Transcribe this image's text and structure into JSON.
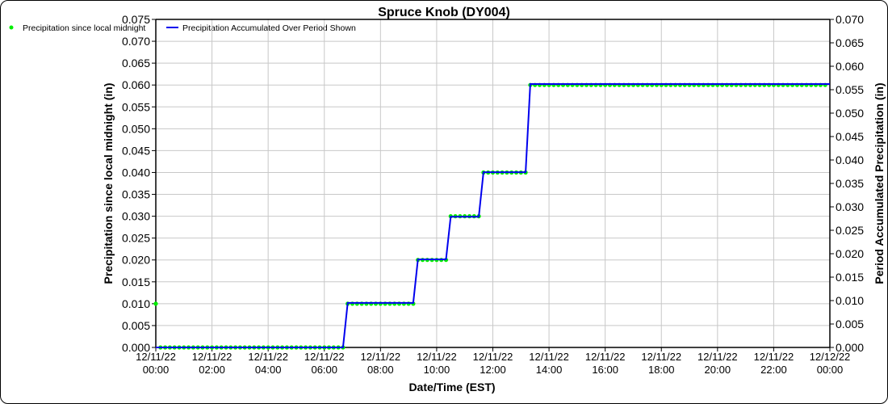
{
  "chart_data": {
    "type": "line",
    "title": "Spruce Knob (DY004)",
    "xlabel": "Date/Time (EST)",
    "ylabel_left": "Precipitation since local midnight (in)",
    "ylabel_right": "Period Accumulated Precipitation (in)",
    "ylim_left": [
      0,
      0.075
    ],
    "ylim_right": [
      0,
      0.07
    ],
    "ytick_step": 0.005,
    "xlim_hours": [
      0,
      24
    ],
    "xtick_step_hours": 2,
    "xtick_labels": [
      [
        "12/11/22",
        "00:00"
      ],
      [
        "12/11/22",
        "02:00"
      ],
      [
        "12/11/22",
        "04:00"
      ],
      [
        "12/11/22",
        "06:00"
      ],
      [
        "12/11/22",
        "08:00"
      ],
      [
        "12/11/22",
        "10:00"
      ],
      [
        "12/11/22",
        "12:00"
      ],
      [
        "12/11/22",
        "14:00"
      ],
      [
        "12/11/22",
        "16:00"
      ],
      [
        "12/11/22",
        "18:00"
      ],
      [
        "12/11/22",
        "20:00"
      ],
      [
        "12/11/22",
        "22:00"
      ],
      [
        "12/12/22",
        "00:00"
      ]
    ],
    "grid": true,
    "legend_position": "top-left",
    "interval_minutes": 10,
    "series": [
      {
        "name": "Precipitation since local midnight",
        "axis": "left",
        "style": "points",
        "color": "#00ee00",
        "runs": [
          {
            "start": "00:00",
            "end": "00:00",
            "value": 0.01
          },
          {
            "start": "00:10",
            "end": "06:40",
            "value": 0.0
          },
          {
            "start": "06:50",
            "end": "09:10",
            "value": 0.01
          },
          {
            "start": "09:20",
            "end": "10:20",
            "value": 0.02
          },
          {
            "start": "10:30",
            "end": "11:30",
            "value": 0.03
          },
          {
            "start": "11:40",
            "end": "13:10",
            "value": 0.04
          },
          {
            "start": "13:20",
            "end": "23:50",
            "value": 0.06
          }
        ]
      },
      {
        "name": "Precipitation Accumulated Over Period Shown",
        "axis": "right",
        "style": "line",
        "color": "#0000ee",
        "runs": [
          {
            "start": "00:00",
            "end": "06:40",
            "value": 0.0
          },
          {
            "start": "06:50",
            "end": "09:10",
            "value": 0.0095
          },
          {
            "start": "09:20",
            "end": "10:20",
            "value": 0.0188
          },
          {
            "start": "10:30",
            "end": "11:30",
            "value": 0.0279
          },
          {
            "start": "11:40",
            "end": "13:10",
            "value": 0.0374
          },
          {
            "start": "13:20",
            "end": "24:00",
            "value": 0.0562
          }
        ]
      }
    ]
  }
}
